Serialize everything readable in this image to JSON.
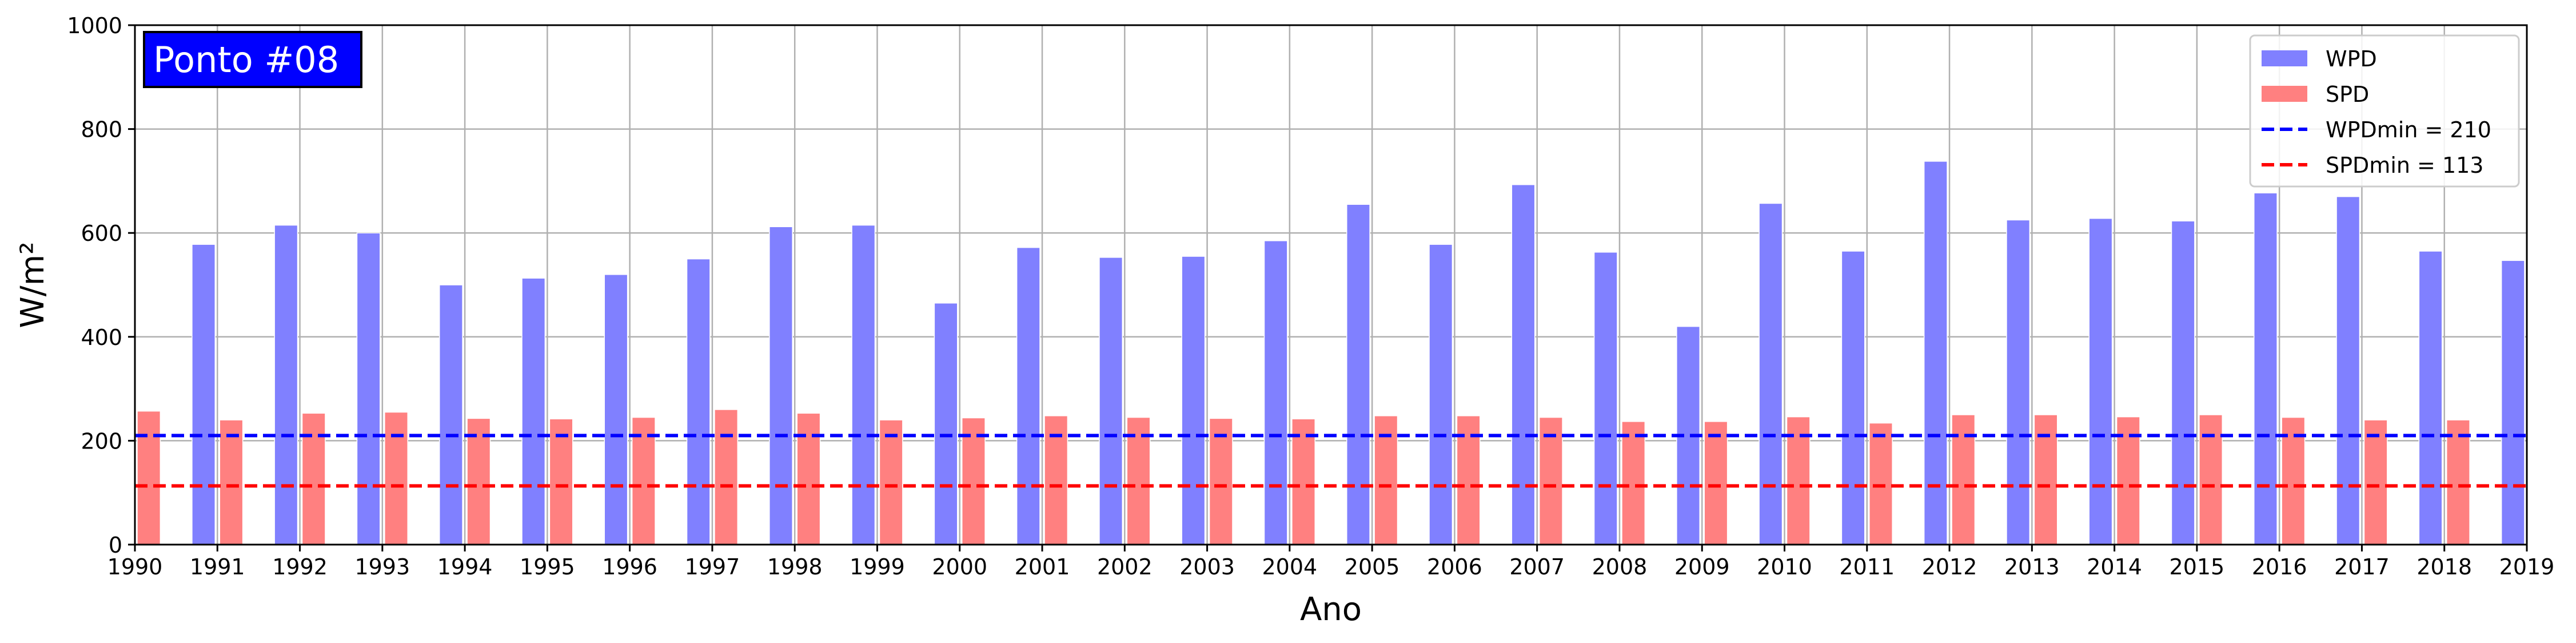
{
  "chart_data": {
    "type": "bar",
    "title": "",
    "annotation": "Ponto #08",
    "xlabel": "Ano",
    "ylabel": "W/m²",
    "ylim": [
      0,
      1000
    ],
    "yticks": [
      0,
      200,
      400,
      600,
      800,
      1000
    ],
    "xlim": [
      1990,
      2019
    ],
    "grid": true,
    "legend_position": "top-right",
    "x": [
      1990,
      1991,
      1992,
      1993,
      1994,
      1995,
      1996,
      1997,
      1998,
      1999,
      2000,
      2001,
      2002,
      2003,
      2004,
      2005,
      2006,
      2007,
      2008,
      2009,
      2010,
      2011,
      2012,
      2013,
      2014,
      2015,
      2016,
      2017,
      2018,
      2019
    ],
    "series": [
      {
        "name": "WPD",
        "color": "#8080ff",
        "x": [
          1991,
          1992,
          1993,
          1994,
          1995,
          1996,
          1997,
          1998,
          1999,
          2000,
          2001,
          2002,
          2003,
          2004,
          2005,
          2006,
          2007,
          2008,
          2009,
          2010,
          2011,
          2012,
          2013,
          2014,
          2015,
          2016,
          2017,
          2018,
          2019
        ],
        "values": [
          578,
          615,
          600,
          500,
          513,
          520,
          550,
          612,
          615,
          465,
          572,
          553,
          555,
          585,
          655,
          578,
          693,
          563,
          420,
          657,
          565,
          738,
          625,
          628,
          623,
          677,
          670,
          565,
          547
        ]
      },
      {
        "name": "SPD",
        "color": "#ff8080",
        "x": [
          1990,
          1991,
          1992,
          1993,
          1994,
          1995,
          1996,
          1997,
          1998,
          1999,
          2000,
          2001,
          2002,
          2003,
          2004,
          2005,
          2006,
          2007,
          2008,
          2009,
          2010,
          2011,
          2012,
          2013,
          2014,
          2015,
          2016,
          2017,
          2018
        ],
        "values": [
          257,
          240,
          253,
          255,
          243,
          242,
          245,
          260,
          253,
          240,
          244,
          248,
          245,
          243,
          242,
          248,
          248,
          245,
          237,
          237,
          246,
          234,
          250,
          250,
          246,
          250,
          245,
          240,
          240
        ]
      }
    ],
    "reference_lines": [
      {
        "name": "WPDmin = 210",
        "value": 210,
        "color": "#0000ff",
        "style": "dashed"
      },
      {
        "name": "SPDmin = 113",
        "value": 113,
        "color": "#ff0000",
        "style": "dashed"
      }
    ]
  }
}
